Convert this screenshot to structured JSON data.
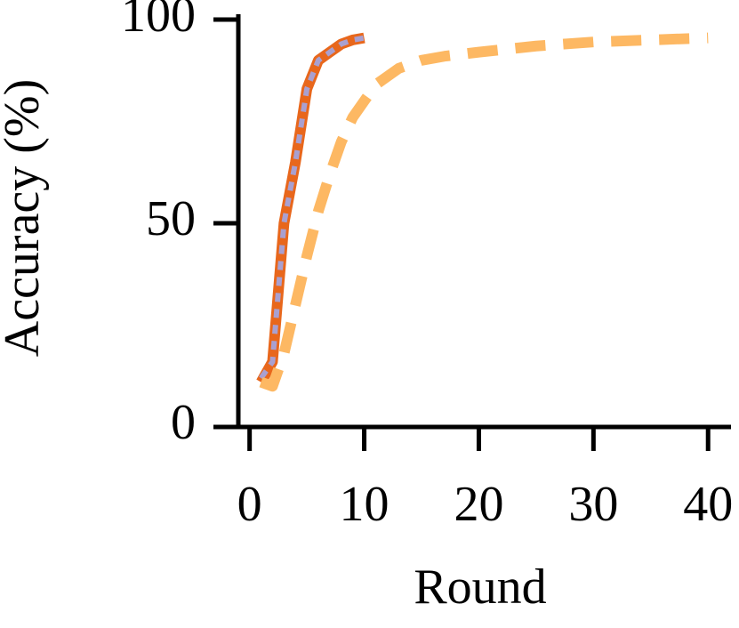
{
  "chart_data": {
    "type": "line",
    "xlabel": "Round",
    "ylabel": "Accuracy (%)",
    "xlim": [
      -3,
      42
    ],
    "ylim": [
      0,
      100
    ],
    "xticks": [
      0,
      10,
      20,
      30,
      40
    ],
    "yticks": [
      0,
      50,
      100
    ],
    "series": [
      {
        "color": "#e8671c",
        "style": "solid",
        "x": [
          1,
          2,
          3,
          4,
          5,
          6,
          7,
          8,
          9,
          10
        ],
        "values": [
          11,
          16,
          50,
          65,
          83,
          90,
          92,
          94,
          95,
          95.5
        ]
      },
      {
        "color": "#a9a0d0",
        "style": "dotted",
        "x": [
          1,
          2,
          3,
          4,
          5,
          6,
          7,
          8,
          9,
          10
        ],
        "values": [
          12,
          16,
          50,
          65,
          83,
          90,
          92,
          94,
          95,
          95.5
        ]
      },
      {
        "color": "#fdb863",
        "style": "dashed",
        "x": [
          1,
          2,
          3,
          4,
          5,
          6,
          7,
          8,
          9,
          10,
          11,
          12,
          13,
          14,
          15,
          17,
          20,
          25,
          30,
          35,
          40
        ],
        "values": [
          11,
          10,
          18,
          30,
          42,
          53,
          62,
          70,
          76,
          80,
          84,
          86,
          88,
          89,
          90,
          91,
          92,
          93.5,
          94.5,
          95,
          95.5
        ]
      }
    ]
  }
}
